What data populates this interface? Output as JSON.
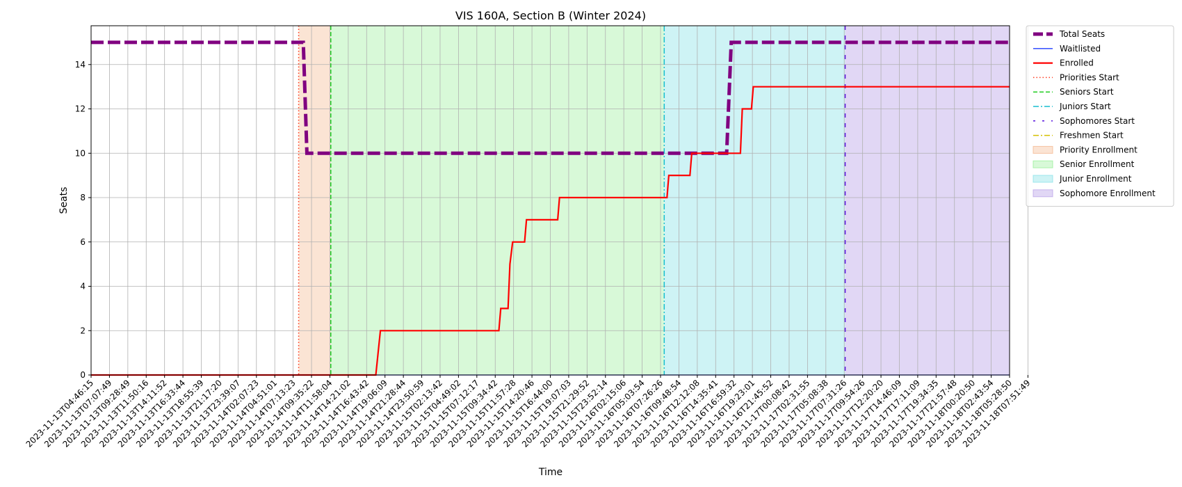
{
  "chart_data": {
    "type": "line",
    "title": "VIS 160A, Section B (Winter 2024)",
    "xlabel": "Time",
    "ylabel": "Seats",
    "ylim": [
      0,
      15.75
    ],
    "xlim": [
      0,
      50
    ],
    "yticks": [
      0,
      2,
      4,
      6,
      8,
      10,
      12,
      14
    ],
    "grid": true,
    "legend_position": "outside-right",
    "x_tick_labels": [
      "2023-11-13T04:46:15",
      "2023-11-13T07:07:49",
      "2023-11-13T09:28:49",
      "2023-11-13T11:50:16",
      "2023-11-13T14:11:52",
      "2023-11-13T16:33:44",
      "2023-11-13T18:55:39",
      "2023-11-13T21:17:20",
      "2023-11-13T23:39:07",
      "2023-11-14T02:07:23",
      "2023-11-14T04:51:01",
      "2023-11-14T07:13:23",
      "2023-11-14T09:35:22",
      "2023-11-14T11:58:04",
      "2023-11-14T14:21:02",
      "2023-11-14T16:43:42",
      "2023-11-14T19:06:09",
      "2023-11-14T21:28:44",
      "2023-11-14T23:50:59",
      "2023-11-15T02:13:42",
      "2023-11-15T04:49:02",
      "2023-11-15T07:12:17",
      "2023-11-15T09:34:42",
      "2023-11-15T11:57:28",
      "2023-11-15T14:20:46",
      "2023-11-15T16:44:00",
      "2023-11-15T19:07:03",
      "2023-11-15T21:29:52",
      "2023-11-15T23:52:14",
      "2023-11-16T02:15:06",
      "2023-11-16T05:03:54",
      "2023-11-16T07:26:26",
      "2023-11-16T09:48:54",
      "2023-11-16T12:12:08",
      "2023-11-16T14:35:41",
      "2023-11-16T16:59:32",
      "2023-11-16T19:23:01",
      "2023-11-16T21:45:52",
      "2023-11-17T00:08:42",
      "2023-11-17T02:31:55",
      "2023-11-17T05:08:38",
      "2023-11-17T07:31:26",
      "2023-11-17T09:54:26",
      "2023-11-17T12:20:20",
      "2023-11-17T14:46:09",
      "2023-11-17T17:11:09",
      "2023-11-17T19:34:35",
      "2023-11-17T21:57:48",
      "2023-11-18T00:20:50",
      "2023-11-18T02:43:54",
      "2023-11-18T05:28:50",
      "2023-11-18T07:51:49"
    ],
    "regions": [
      {
        "name": "Priority Enrollment",
        "x0": 11.3,
        "x1": 13.05,
        "color": "#f4b183",
        "opacity": 0.35
      },
      {
        "name": "Senior Enrollment",
        "x0": 13.05,
        "x1": 31.2,
        "color": "#90ee90",
        "opacity": 0.35
      },
      {
        "name": "Junior Enrollment",
        "x0": 31.2,
        "x1": 41.05,
        "color": "#7fdfe6",
        "opacity": 0.38
      },
      {
        "name": "Sophomore Enrollment",
        "x0": 41.05,
        "x1": 50,
        "color": "#b59be6",
        "opacity": 0.4
      }
    ],
    "vlines": [
      {
        "name": "Priorities Start",
        "x": 11.3,
        "color": "#ff3b1f",
        "dash": "1.5,3"
      },
      {
        "name": "Seniors Start",
        "x": 13.05,
        "color": "#22cc22",
        "dash": "6,3"
      },
      {
        "name": "Juniors Start",
        "x": 31.2,
        "color": "#17becf",
        "dash": "8,3,2,3"
      },
      {
        "name": "Sophomores Start",
        "x": 41.05,
        "color": "#5511dd",
        "dash": "6,8"
      }
    ],
    "series": [
      {
        "name": "Total Seats",
        "color": "#800080",
        "width": 5,
        "dash": "18,6",
        "x": [
          0,
          11.55,
          11.75,
          34.6,
          34.85,
          50
        ],
        "y": [
          15,
          15,
          10,
          10,
          15,
          15
        ]
      },
      {
        "name": "Waitlisted",
        "color": "#1f3cff",
        "width": 1.3,
        "dash": "",
        "x": [
          0,
          50
        ],
        "y": [
          0,
          0
        ]
      },
      {
        "name": "Enrolled",
        "color": "#ff0000",
        "width": 2.2,
        "dash": "",
        "x": [
          0,
          15.5,
          15.75,
          22.2,
          22.3,
          22.7,
          22.8,
          22.95,
          23.0,
          23.6,
          23.7,
          25.4,
          25.5,
          31.2,
          31.35,
          31.45,
          32.6,
          32.7,
          35.35,
          35.45,
          35.95,
          36.05,
          50
        ],
        "y": [
          0,
          0,
          2,
          2,
          3,
          3,
          5,
          6,
          6,
          6,
          7,
          7,
          8,
          8,
          8,
          9,
          9,
          10,
          10,
          12,
          12,
          13,
          13
        ]
      }
    ],
    "legend": [
      {
        "label": "Total Seats",
        "kind": "line",
        "color": "#800080",
        "width": 5,
        "dash": "14,5"
      },
      {
        "label": "Waitlisted",
        "kind": "line",
        "color": "#1f3cff",
        "width": 1.3,
        "dash": ""
      },
      {
        "label": "Enrolled",
        "kind": "line",
        "color": "#ff0000",
        "width": 2.2,
        "dash": ""
      },
      {
        "label": "Priorities Start",
        "kind": "line",
        "color": "#ff3b1f",
        "width": 1.5,
        "dash": "1.5,3"
      },
      {
        "label": "Seniors Start",
        "kind": "line",
        "color": "#22cc22",
        "width": 1.5,
        "dash": "6,3"
      },
      {
        "label": "Juniors Start",
        "kind": "line",
        "color": "#17becf",
        "width": 1.5,
        "dash": "8,3,2,3"
      },
      {
        "label": "Sophomores Start",
        "kind": "line",
        "color": "#5511dd",
        "width": 1.5,
        "dash": "3,10"
      },
      {
        "label": "Freshmen Start",
        "kind": "line",
        "color": "#d4c000",
        "width": 1.5,
        "dash": "8,3,2,3"
      },
      {
        "label": "Priority Enrollment",
        "kind": "patch",
        "color": "#f4b183",
        "opacity": 0.35
      },
      {
        "label": "Senior Enrollment",
        "kind": "patch",
        "color": "#90ee90",
        "opacity": 0.35
      },
      {
        "label": "Junior Enrollment",
        "kind": "patch",
        "color": "#7fdfe6",
        "opacity": 0.38
      },
      {
        "label": "Sophomore Enrollment",
        "kind": "patch",
        "color": "#b59be6",
        "opacity": 0.4
      }
    ]
  }
}
